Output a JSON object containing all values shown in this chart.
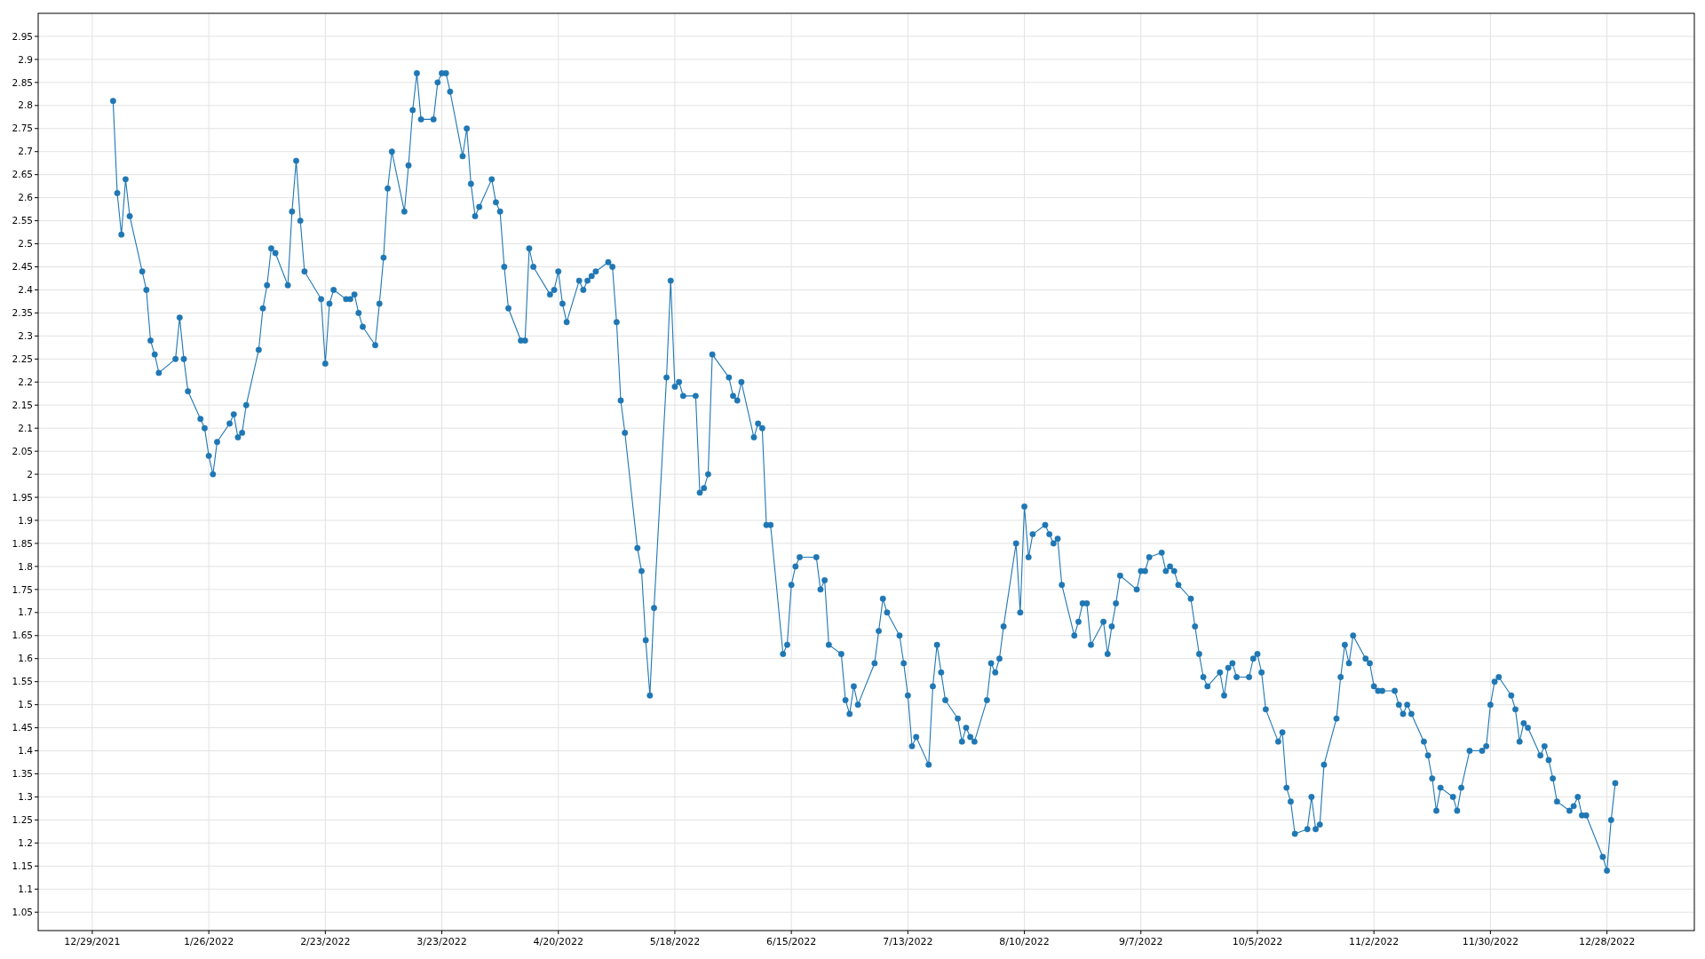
{
  "chart_data": {
    "type": "line",
    "xlim": [
      "2021-12-16",
      "2023-01-18"
    ],
    "xticks": [
      {
        "value": "2021-12-29",
        "label": "12/29/2021"
      },
      {
        "value": "2022-01-26",
        "label": "1/26/2022"
      },
      {
        "value": "2022-02-23",
        "label": "2/23/2022"
      },
      {
        "value": "2022-03-23",
        "label": "3/23/2022"
      },
      {
        "value": "2022-04-20",
        "label": "4/20/2022"
      },
      {
        "value": "2022-05-18",
        "label": "5/18/2022"
      },
      {
        "value": "2022-06-15",
        "label": "6/15/2022"
      },
      {
        "value": "2022-07-13",
        "label": "7/13/2022"
      },
      {
        "value": "2022-08-10",
        "label": "8/10/2022"
      },
      {
        "value": "2022-09-07",
        "label": "9/7/2022"
      },
      {
        "value": "2022-10-05",
        "label": "10/5/2022"
      },
      {
        "value": "2022-11-02",
        "label": "11/2/2022"
      },
      {
        "value": "2022-11-30",
        "label": "11/30/2022"
      },
      {
        "value": "2022-12-28",
        "label": "12/28/2022"
      }
    ],
    "ylim": [
      1.01,
      3.0
    ],
    "yticks": [
      1.05,
      1.1,
      1.15,
      1.2,
      1.25,
      1.3,
      1.35,
      1.4,
      1.45,
      1.5,
      1.55,
      1.6,
      1.65,
      1.7,
      1.75,
      1.8,
      1.85,
      1.9,
      1.95,
      2,
      2.05,
      2.1,
      2.15,
      2.2,
      2.25,
      2.3,
      2.35,
      2.4,
      2.45,
      2.5,
      2.55,
      2.6,
      2.65,
      2.7,
      2.75,
      2.8,
      2.85,
      2.9,
      2.95
    ],
    "grid": true,
    "marker": "circle",
    "line_style": "solid",
    "series": [
      {
        "color": "#1f77b4",
        "x": [
          "2022-01-03",
          "2022-01-04",
          "2022-01-05",
          "2022-01-06",
          "2022-01-07",
          "2022-01-10",
          "2022-01-11",
          "2022-01-12",
          "2022-01-13",
          "2022-01-14",
          "2022-01-18",
          "2022-01-19",
          "2022-01-20",
          "2022-01-21",
          "2022-01-24",
          "2022-01-25",
          "2022-01-26",
          "2022-01-27",
          "2022-01-28",
          "2022-01-31",
          "2022-02-01",
          "2022-02-02",
          "2022-02-03",
          "2022-02-04",
          "2022-02-07",
          "2022-02-08",
          "2022-02-09",
          "2022-02-10",
          "2022-02-11",
          "2022-02-14",
          "2022-02-15",
          "2022-02-16",
          "2022-02-17",
          "2022-02-18",
          "2022-02-22",
          "2022-02-23",
          "2022-02-24",
          "2022-02-25",
          "2022-02-28",
          "2022-03-01",
          "2022-03-02",
          "2022-03-03",
          "2022-03-04",
          "2022-03-07",
          "2022-03-08",
          "2022-03-09",
          "2022-03-10",
          "2022-03-11",
          "2022-03-14",
          "2022-03-15",
          "2022-03-16",
          "2022-03-17",
          "2022-03-18",
          "2022-03-21",
          "2022-03-22",
          "2022-03-23",
          "2022-03-24",
          "2022-03-25",
          "2022-03-28",
          "2022-03-29",
          "2022-03-30",
          "2022-03-31",
          "2022-04-01",
          "2022-04-04",
          "2022-04-05",
          "2022-04-06",
          "2022-04-07",
          "2022-04-08",
          "2022-04-11",
          "2022-04-12",
          "2022-04-13",
          "2022-04-14",
          "2022-04-18",
          "2022-04-19",
          "2022-04-20",
          "2022-04-21",
          "2022-04-22",
          "2022-04-25",
          "2022-04-26",
          "2022-04-27",
          "2022-04-28",
          "2022-04-29",
          "2022-05-02",
          "2022-05-03",
          "2022-05-04",
          "2022-05-05",
          "2022-05-06",
          "2022-05-09",
          "2022-05-10",
          "2022-05-11",
          "2022-05-12",
          "2022-05-13",
          "2022-05-16",
          "2022-05-17",
          "2022-05-18",
          "2022-05-19",
          "2022-05-20",
          "2022-05-23",
          "2022-05-24",
          "2022-05-25",
          "2022-05-26",
          "2022-05-27",
          "2022-05-31",
          "2022-06-01",
          "2022-06-02",
          "2022-06-03",
          "2022-06-06",
          "2022-06-07",
          "2022-06-08",
          "2022-06-09",
          "2022-06-10",
          "2022-06-13",
          "2022-06-14",
          "2022-06-15",
          "2022-06-16",
          "2022-06-17",
          "2022-06-21",
          "2022-06-22",
          "2022-06-23",
          "2022-06-24",
          "2022-06-27",
          "2022-06-28",
          "2022-06-29",
          "2022-06-30",
          "2022-07-01",
          "2022-07-05",
          "2022-07-06",
          "2022-07-07",
          "2022-07-08",
          "2022-07-11",
          "2022-07-12",
          "2022-07-13",
          "2022-07-14",
          "2022-07-15",
          "2022-07-18",
          "2022-07-19",
          "2022-07-20",
          "2022-07-21",
          "2022-07-22",
          "2022-07-25",
          "2022-07-26",
          "2022-07-27",
          "2022-07-28",
          "2022-07-29",
          "2022-08-01",
          "2022-08-02",
          "2022-08-03",
          "2022-08-04",
          "2022-08-05",
          "2022-08-08",
          "2022-08-09",
          "2022-08-10",
          "2022-08-11",
          "2022-08-12",
          "2022-08-15",
          "2022-08-16",
          "2022-08-17",
          "2022-08-18",
          "2022-08-19",
          "2022-08-22",
          "2022-08-23",
          "2022-08-24",
          "2022-08-25",
          "2022-08-26",
          "2022-08-29",
          "2022-08-30",
          "2022-08-31",
          "2022-09-01",
          "2022-09-02",
          "2022-09-06",
          "2022-09-07",
          "2022-09-08",
          "2022-09-09",
          "2022-09-12",
          "2022-09-13",
          "2022-09-14",
          "2022-09-15",
          "2022-09-16",
          "2022-09-19",
          "2022-09-20",
          "2022-09-21",
          "2022-09-22",
          "2022-09-23",
          "2022-09-26",
          "2022-09-27",
          "2022-09-28",
          "2022-09-29",
          "2022-09-30",
          "2022-10-03",
          "2022-10-04",
          "2022-10-05",
          "2022-10-06",
          "2022-10-07",
          "2022-10-10",
          "2022-10-11",
          "2022-10-12",
          "2022-10-13",
          "2022-10-14",
          "2022-10-17",
          "2022-10-18",
          "2022-10-19",
          "2022-10-20",
          "2022-10-21",
          "2022-10-24",
          "2022-10-25",
          "2022-10-26",
          "2022-10-27",
          "2022-10-28",
          "2022-10-31",
          "2022-11-01",
          "2022-11-02",
          "2022-11-03",
          "2022-11-04",
          "2022-11-07",
          "2022-11-08",
          "2022-11-09",
          "2022-11-10",
          "2022-11-11",
          "2022-11-14",
          "2022-11-15",
          "2022-11-16",
          "2022-11-17",
          "2022-11-18",
          "2022-11-21",
          "2022-11-22",
          "2022-11-23",
          "2022-11-25",
          "2022-11-28",
          "2022-11-29",
          "2022-11-30",
          "2022-12-01",
          "2022-12-02",
          "2022-12-05",
          "2022-12-06",
          "2022-12-07",
          "2022-12-08",
          "2022-12-09",
          "2022-12-12",
          "2022-12-13",
          "2022-12-14",
          "2022-12-15",
          "2022-12-16",
          "2022-12-19",
          "2022-12-20",
          "2022-12-21",
          "2022-12-22",
          "2022-12-23",
          "2022-12-27",
          "2022-12-28",
          "2022-12-29",
          "2022-12-30"
        ],
        "values": [
          2.81,
          2.61,
          2.52,
          2.64,
          2.56,
          2.44,
          2.4,
          2.29,
          2.26,
          2.22,
          2.25,
          2.34,
          2.25,
          2.18,
          2.12,
          2.1,
          2.04,
          2.0,
          2.07,
          2.11,
          2.13,
          2.08,
          2.09,
          2.15,
          2.27,
          2.36,
          2.41,
          2.49,
          2.48,
          2.41,
          2.57,
          2.68,
          2.55,
          2.44,
          2.38,
          2.24,
          2.37,
          2.4,
          2.38,
          2.38,
          2.39,
          2.35,
          2.32,
          2.28,
          2.37,
          2.47,
          2.62,
          2.7,
          2.57,
          2.67,
          2.79,
          2.87,
          2.77,
          2.77,
          2.85,
          2.87,
          2.87,
          2.83,
          2.69,
          2.75,
          2.63,
          2.56,
          2.58,
          2.64,
          2.59,
          2.57,
          2.45,
          2.36,
          2.29,
          2.29,
          2.49,
          2.45,
          2.39,
          2.4,
          2.44,
          2.37,
          2.33,
          2.42,
          2.4,
          2.42,
          2.43,
          2.44,
          2.46,
          2.45,
          2.33,
          2.16,
          2.09,
          1.84,
          1.79,
          1.64,
          1.52,
          1.71,
          2.21,
          2.42,
          2.19,
          2.2,
          2.17,
          2.17,
          1.96,
          1.97,
          2.0,
          2.26,
          2.21,
          2.17,
          2.16,
          2.2,
          2.08,
          2.11,
          2.1,
          1.89,
          1.89,
          1.61,
          1.63,
          1.76,
          1.8,
          1.82,
          1.82,
          1.75,
          1.77,
          1.63,
          1.61,
          1.51,
          1.48,
          1.54,
          1.5,
          1.59,
          1.66,
          1.73,
          1.7,
          1.65,
          1.59,
          1.52,
          1.41,
          1.43,
          1.37,
          1.54,
          1.63,
          1.57,
          1.51,
          1.47,
          1.42,
          1.45,
          1.43,
          1.42,
          1.51,
          1.59,
          1.57,
          1.6,
          1.67,
          1.85,
          1.7,
          1.93,
          1.82,
          1.87,
          1.89,
          1.87,
          1.85,
          1.86,
          1.76,
          1.65,
          1.68,
          1.72,
          1.72,
          1.63,
          1.68,
          1.61,
          1.67,
          1.72,
          1.78,
          1.75,
          1.79,
          1.79,
          1.82,
          1.83,
          1.79,
          1.8,
          1.79,
          1.76,
          1.73,
          1.67,
          1.61,
          1.56,
          1.54,
          1.57,
          1.52,
          1.58,
          1.59,
          1.56,
          1.56,
          1.6,
          1.61,
          1.57,
          1.49,
          1.42,
          1.44,
          1.32,
          1.29,
          1.22,
          1.23,
          1.3,
          1.23,
          1.24,
          1.37,
          1.47,
          1.56,
          1.63,
          1.59,
          1.65,
          1.6,
          1.59,
          1.54,
          1.53,
          1.53,
          1.53,
          1.5,
          1.48,
          1.5,
          1.48,
          1.42,
          1.39,
          1.34,
          1.27,
          1.32,
          1.3,
          1.27,
          1.32,
          1.4,
          1.4,
          1.41,
          1.5,
          1.55,
          1.56,
          1.52,
          1.49,
          1.42,
          1.46,
          1.45,
          1.39,
          1.41,
          1.38,
          1.34,
          1.29,
          1.27,
          1.28,
          1.3,
          1.26,
          1.26,
          1.17,
          1.14,
          1.25,
          1.33
        ]
      }
    ]
  }
}
